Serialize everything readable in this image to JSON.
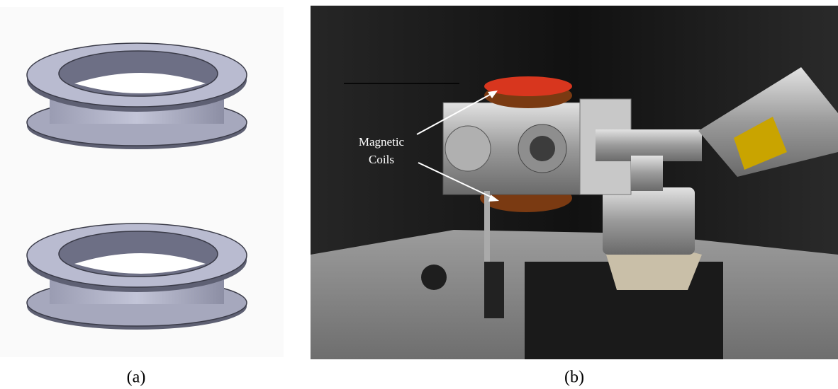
{
  "panels": [
    {
      "label": "(a)"
    },
    {
      "label": "(b)",
      "annotation": [
        "Magnetic",
        "Coils"
      ]
    }
  ]
}
